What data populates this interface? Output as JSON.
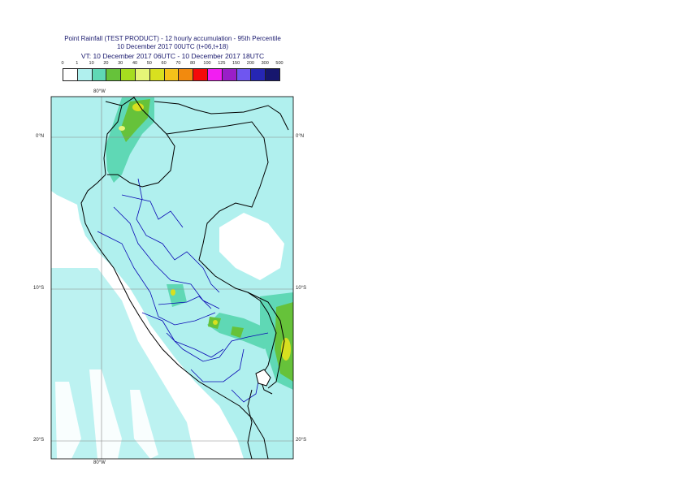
{
  "header": {
    "line1": "Point Rainfall (TEST PRODUCT) - 12 hourly accumulation - 95th Percentile",
    "line2": "10 December 2017 00UTC (t+06,t+18)",
    "line3": "VT: 10 December 2017 06UTC - 10 December 2017 18UTC"
  },
  "legend": {
    "thresholds": [
      "0",
      "1",
      "10",
      "20",
      "30",
      "40",
      "50",
      "60",
      "70",
      "80",
      "100",
      "125",
      "150",
      "200",
      "300",
      "500"
    ],
    "colors": [
      "#ffffff",
      "#b0f0ee",
      "#5fd8b5",
      "#66c23a",
      "#a6dd1f",
      "#e6f577",
      "#d8e01f",
      "#f5c21a",
      "#f28a0e",
      "#f50a0a",
      "#f21ef2",
      "#9a1ec8",
      "#6f56f0",
      "#2626b4",
      "#16166e"
    ]
  },
  "map": {
    "lon_top": "80°W",
    "lon_bottom": "80°W",
    "lat_left": [
      "0°N",
      "10°S",
      "20°S"
    ],
    "lat_right": [
      "0°N",
      "10°S",
      "20°S"
    ],
    "colors": {
      "ocean": "#ffffff",
      "rain_light": "#b0f0ee",
      "rain_med": "#5fd8b5",
      "rain_green": "#66c23a",
      "rain_yellow": "#d8e01f",
      "border": "#000000",
      "region": "#0a0ab4",
      "grid": "#888888"
    }
  }
}
